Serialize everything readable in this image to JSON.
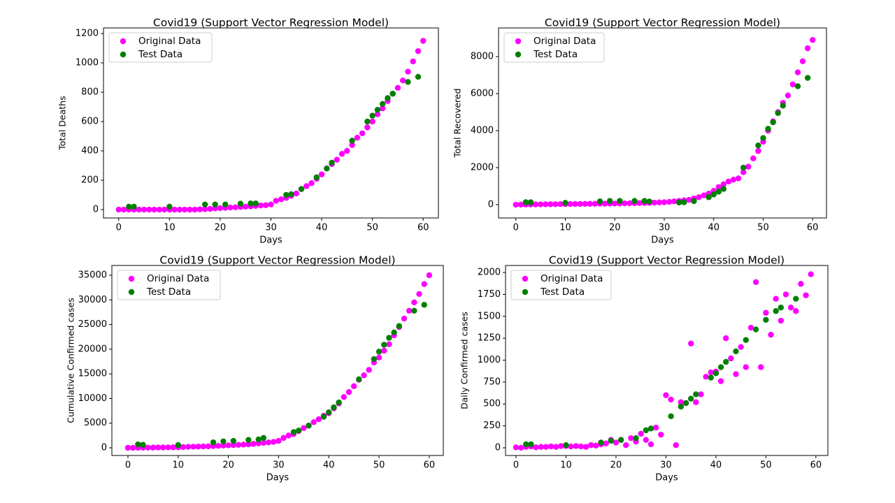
{
  "chart_data": [
    {
      "type": "scatter",
      "title": "Covid19 (Support Vector Regression Model)",
      "x_label": "Days",
      "y_label": "Total Deaths",
      "xlim": [
        -3,
        63
      ],
      "xticks": [
        0,
        10,
        20,
        30,
        40,
        50,
        60
      ],
      "ylim": [
        -57,
        1238
      ],
      "yticks": [
        0,
        200,
        400,
        600,
        800,
        1000,
        1200
      ],
      "legend": "upper left",
      "series": [
        {
          "name": "Original Data",
          "color": "#ff00ff",
          "x": [
            0,
            1,
            2,
            3,
            4,
            5,
            6,
            7,
            8,
            9,
            10,
            11,
            12,
            13,
            14,
            15,
            16,
            17,
            18,
            19,
            20,
            21,
            22,
            23,
            24,
            25,
            26,
            27,
            28,
            29,
            30,
            31,
            32,
            33,
            34,
            35,
            36,
            37,
            38,
            39,
            40,
            41,
            42,
            43,
            44,
            45,
            46,
            47,
            48,
            49,
            50,
            51,
            52,
            53,
            54,
            55,
            56,
            57,
            58,
            59,
            60
          ],
          "values": [
            0,
            0,
            0,
            0,
            0,
            0,
            0,
            0,
            0,
            0,
            0,
            0,
            0,
            0,
            0,
            0,
            2,
            3,
            5,
            8,
            10,
            12,
            14,
            16,
            18,
            20,
            22,
            25,
            28,
            30,
            35,
            60,
            70,
            80,
            95,
            110,
            140,
            160,
            180,
            210,
            240,
            280,
            310,
            340,
            380,
            400,
            440,
            490,
            520,
            560,
            600,
            650,
            690,
            740,
            790,
            830,
            880,
            940,
            1010,
            1080,
            1150
          ]
        },
        {
          "name": "Test Data",
          "color": "#008000",
          "x": [
            2,
            3,
            10,
            17,
            19,
            21,
            24,
            26,
            27,
            33,
            34,
            36,
            39,
            41,
            42,
            46,
            49,
            50,
            51,
            52,
            53,
            54,
            57,
            59
          ],
          "values": [
            20,
            20,
            20,
            35,
            35,
            35,
            40,
            42,
            42,
            100,
            105,
            140,
            220,
            280,
            320,
            470,
            600,
            640,
            680,
            720,
            760,
            790,
            870,
            905
          ]
        }
      ]
    },
    {
      "type": "scatter",
      "title": "Covid19 (Support Vector Regression Model)",
      "x_label": "Days",
      "y_label": "Total Recovered",
      "xlim": [
        -3.5,
        62.8
      ],
      "xticks": [
        0,
        10,
        20,
        30,
        40,
        50,
        60
      ],
      "ylim": [
        -720,
        9550
      ],
      "yticks": [
        0,
        2000,
        4000,
        6000,
        8000
      ],
      "legend": "upper left",
      "series": [
        {
          "name": "Original Data",
          "color": "#ff00ff",
          "x": [
            0,
            1,
            2,
            3,
            4,
            5,
            6,
            7,
            8,
            9,
            10,
            11,
            12,
            13,
            14,
            15,
            16,
            17,
            18,
            19,
            20,
            21,
            22,
            23,
            24,
            25,
            26,
            27,
            28,
            29,
            30,
            31,
            32,
            33,
            34,
            35,
            36,
            37,
            38,
            39,
            40,
            41,
            42,
            43,
            44,
            45,
            46,
            47,
            48,
            49,
            50,
            51,
            52,
            53,
            54,
            55,
            56,
            57,
            58,
            59,
            60
          ],
          "values": [
            0,
            3,
            6,
            9,
            12,
            15,
            18,
            21,
            24,
            27,
            30,
            33,
            36,
            39,
            42,
            45,
            48,
            51,
            54,
            57,
            60,
            65,
            70,
            75,
            80,
            85,
            90,
            100,
            110,
            120,
            130,
            150,
            180,
            200,
            230,
            260,
            330,
            400,
            500,
            600,
            750,
            950,
            1100,
            1250,
            1350,
            1420,
            1750,
            2050,
            2500,
            2900,
            3400,
            4000,
            4500,
            5000,
            5500,
            5900,
            6500,
            7150,
            7750,
            8450,
            8900
          ]
        },
        {
          "name": "Test Data",
          "color": "#008000",
          "x": [
            2,
            3,
            10,
            17,
            19,
            21,
            24,
            26,
            27,
            33,
            34,
            36,
            39,
            40,
            41,
            42,
            46,
            49,
            50,
            51,
            52,
            53,
            54,
            57,
            59
          ],
          "values": [
            130,
            130,
            100,
            180,
            200,
            200,
            200,
            200,
            170,
            120,
            130,
            190,
            400,
            550,
            700,
            850,
            2000,
            3200,
            3600,
            4100,
            4450,
            4950,
            5350,
            6400,
            6850
          ]
        }
      ]
    },
    {
      "type": "scatter",
      "title": "Covid19 (Support Vector Regression Model)",
      "x_label": "Days",
      "y_label": "Cumulative Confirmed cases",
      "xlim": [
        -3.2,
        62.8
      ],
      "xticks": [
        0,
        10,
        20,
        30,
        40,
        50,
        60
      ],
      "ylim": [
        -1560,
        36980
      ],
      "yticks": [
        0,
        5000,
        10000,
        15000,
        20000,
        25000,
        30000,
        35000
      ],
      "legend": "upper left",
      "series": [
        {
          "name": "Original Data",
          "color": "#ff00ff",
          "x": [
            0,
            1,
            2,
            3,
            4,
            5,
            6,
            7,
            8,
            9,
            10,
            11,
            12,
            13,
            14,
            15,
            16,
            17,
            18,
            19,
            20,
            21,
            22,
            23,
            24,
            25,
            26,
            27,
            28,
            29,
            30,
            31,
            32,
            33,
            34,
            35,
            36,
            37,
            38,
            39,
            40,
            41,
            42,
            43,
            44,
            45,
            46,
            47,
            48,
            49,
            50,
            51,
            52,
            53,
            54,
            55,
            56,
            57,
            58,
            59,
            60
          ],
          "values": [
            0,
            0,
            20,
            30,
            40,
            50,
            60,
            70,
            80,
            90,
            100,
            150,
            200,
            220,
            250,
            280,
            300,
            350,
            400,
            450,
            500,
            550,
            600,
            650,
            700,
            800,
            900,
            1000,
            1100,
            1200,
            1400,
            2000,
            2500,
            2800,
            3400,
            4000,
            4500,
            5200,
            5800,
            6500,
            7000,
            8000,
            9000,
            10300,
            11300,
            12500,
            13800,
            14700,
            15800,
            17300,
            18300,
            19700,
            21000,
            22800,
            24500,
            26200,
            27800,
            29500,
            31200,
            33200,
            35000
          ]
        },
        {
          "name": "Test Data",
          "color": "#008000",
          "x": [
            2,
            3,
            10,
            17,
            19,
            21,
            24,
            26,
            27,
            33,
            34,
            36,
            39,
            40,
            41,
            42,
            46,
            49,
            50,
            51,
            52,
            53,
            54,
            57,
            59
          ],
          "values": [
            700,
            600,
            550,
            1100,
            1300,
            1400,
            1600,
            1700,
            2000,
            3200,
            3500,
            4500,
            6300,
            7200,
            8200,
            9200,
            13900,
            18000,
            19500,
            20900,
            22300,
            23400,
            24700,
            27800,
            29000
          ]
        }
      ]
    },
    {
      "type": "scatter",
      "title": "Covid19 (Support Vector Regression Model)",
      "x_label": "Days",
      "y_label": "Daily Confirmed cases",
      "xlim": [
        -2.1,
        62.4
      ],
      "xticks": [
        0,
        10,
        20,
        30,
        40,
        50,
        60
      ],
      "ylim": [
        -88,
        2080
      ],
      "yticks": [
        0,
        250,
        500,
        750,
        1000,
        1250,
        1500,
        1750,
        2000
      ],
      "legend": "upper left",
      "series": [
        {
          "name": "Original Data",
          "color": "#ff00ff",
          "x": [
            0,
            1,
            2,
            3,
            4,
            5,
            6,
            7,
            8,
            9,
            10,
            11,
            12,
            13,
            14,
            15,
            16,
            17,
            18,
            19,
            20,
            21,
            22,
            23,
            24,
            25,
            26,
            27,
            28,
            29,
            30,
            31,
            32,
            33,
            34,
            35,
            36,
            37,
            38,
            39,
            40,
            41,
            42,
            43,
            44,
            45,
            46,
            47,
            48,
            49,
            50,
            51,
            52,
            53,
            54,
            55,
            56,
            57,
            58,
            59
          ],
          "values": [
            5,
            0,
            10,
            15,
            5,
            10,
            10,
            15,
            10,
            20,
            20,
            15,
            20,
            15,
            10,
            30,
            25,
            40,
            50,
            90,
            60,
            90,
            30,
            110,
            70,
            160,
            90,
            40,
            230,
            150,
            600,
            550,
            30,
            520,
            510,
            1190,
            520,
            610,
            810,
            860,
            870,
            760,
            1250,
            1020,
            840,
            1150,
            920,
            1370,
            1890,
            920,
            1540,
            1290,
            1700,
            1450,
            1750,
            1600,
            1560,
            1870,
            1740,
            1980
          ]
        },
        {
          "name": "Test Data",
          "color": "#008000",
          "x": [
            2,
            3,
            10,
            17,
            19,
            21,
            24,
            26,
            27,
            31,
            33,
            34,
            35,
            36,
            39,
            40,
            41,
            42,
            44,
            46,
            48,
            50,
            52,
            53,
            56
          ],
          "values": [
            40,
            40,
            30,
            60,
            80,
            90,
            110,
            200,
            220,
            360,
            470,
            510,
            560,
            610,
            800,
            850,
            920,
            980,
            1100,
            1230,
            1350,
            1460,
            1560,
            1600,
            1700
          ]
        }
      ]
    }
  ]
}
